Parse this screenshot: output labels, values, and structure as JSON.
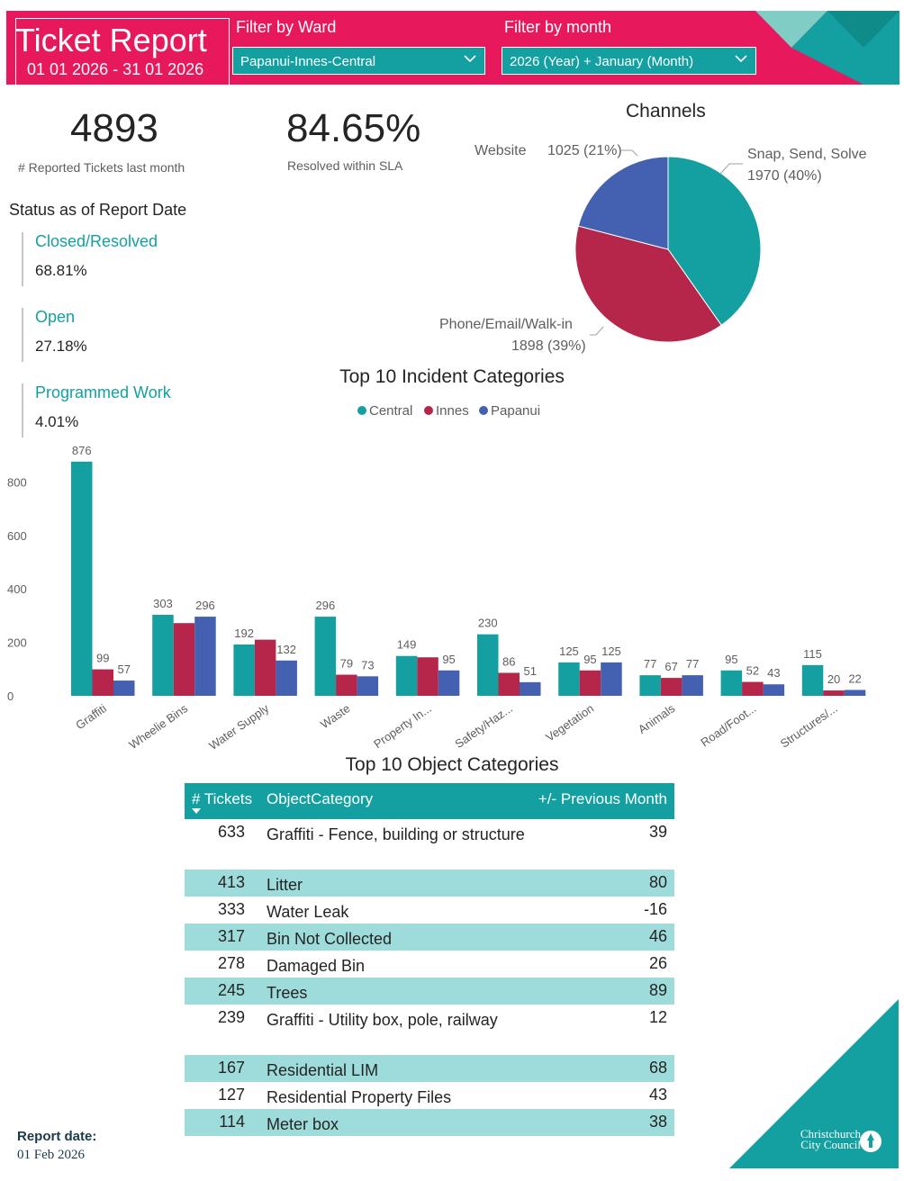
{
  "header": {
    "title": "Ticket Report",
    "date_range": "01 01 2026 - 31 01 2026",
    "ward_filter_label": "Filter by Ward",
    "ward_filter_value": "Papanui-Innes-Central",
    "month_filter_label": "Filter by month",
    "month_filter_value": "2026 (Year) + January (Month)"
  },
  "kpis": {
    "reported": {
      "value": "4893",
      "label": "# Reported Tickets last month"
    },
    "sla": {
      "value": "84.65%",
      "label": "Resolved within SLA"
    }
  },
  "status": {
    "title": "Status as of Report Date",
    "items": [
      {
        "name": "Closed/Resolved",
        "value": "68.81%"
      },
      {
        "name": "Open",
        "value": "27.18%"
      },
      {
        "name": "Programmed Work",
        "value": "4.01%"
      }
    ]
  },
  "table": {
    "title": "Top 10 Object Categories",
    "headers": [
      "# Tickets",
      "ObjectCategory",
      "+/- Previous Month"
    ],
    "rows": [
      {
        "tickets": "633",
        "category": "Graffiti - Fence, building or structure",
        "diff": "39"
      },
      {
        "tickets": "413",
        "category": "Litter",
        "diff": "80"
      },
      {
        "tickets": "333",
        "category": "Water Leak",
        "diff": "-16"
      },
      {
        "tickets": "317",
        "category": "Bin Not Collected",
        "diff": "46"
      },
      {
        "tickets": "278",
        "category": "Damaged Bin",
        "diff": "26"
      },
      {
        "tickets": "245",
        "category": "Trees",
        "diff": "89"
      },
      {
        "tickets": "239",
        "category": "Graffiti - Utility box, pole, railway",
        "diff": "12"
      },
      {
        "tickets": "167",
        "category": "Residential LIM",
        "diff": "68"
      },
      {
        "tickets": "127",
        "category": "Residential Property Files",
        "diff": "43"
      },
      {
        "tickets": "114",
        "category": "Meter box",
        "diff": "38"
      }
    ]
  },
  "footer": {
    "report_date_label": "Report date:",
    "report_date": "01 Feb 2026",
    "logo_line1": "Christchurch",
    "logo_line2": "City Council"
  },
  "colors": {
    "header": "#e8185c",
    "teal": "#14a0a0",
    "innes": "#b5264a",
    "papanui": "#4460b0",
    "row_shade": "#9edcdc"
  },
  "icons": {
    "dropdown": "chevron-down-icon",
    "sort": "sort-descending-icon",
    "logo": "cathedral-logo-icon"
  },
  "chart_data": [
    {
      "type": "pie",
      "title": "Channels",
      "slices": [
        {
          "name": "Snap, Send, Solve",
          "value": 1970,
          "label_value": "1970 (40%)",
          "color": "#14a0a0"
        },
        {
          "name": "Phone/Email/Walk-in",
          "value": 1898,
          "label_value": "1898 (39%)",
          "color": "#b5264a"
        },
        {
          "name": "Website",
          "value": 1025,
          "label_value": "1025 (21%)",
          "color": "#4460b0"
        }
      ]
    },
    {
      "type": "bar",
      "title": "Top 10 Incident Categories",
      "categories": [
        "Graffiti",
        "Wheelie Bins",
        "Water Supply",
        "Waste",
        "Property In...",
        "Safety/Haz...",
        "Vegetation",
        "Animals",
        "Road/Foot...",
        "Structures/..."
      ],
      "series": [
        {
          "name": "Central",
          "color": "#14a0a0",
          "values": [
            876,
            303,
            192,
            296,
            149,
            230,
            125,
            77,
            95,
            115
          ],
          "labels": [
            "876",
            "303",
            "192",
            "296",
            "149",
            "230",
            "125",
            "77",
            "95",
            "115"
          ]
        },
        {
          "name": "Innes",
          "color": "#b5264a",
          "values": [
            99,
            272,
            210,
            79,
            144,
            86,
            95,
            67,
            52,
            20
          ],
          "labels": [
            "99",
            "",
            "",
            "79",
            "",
            "86",
            "95",
            "67",
            "52",
            "20"
          ]
        },
        {
          "name": "Papanui",
          "color": "#4460b0",
          "values": [
            57,
            296,
            132,
            73,
            95,
            51,
            125,
            77,
            43,
            22
          ],
          "labels": [
            "57",
            "296",
            "132",
            "73",
            "95",
            "51",
            "125",
            "77",
            "43",
            "22"
          ]
        }
      ],
      "ylim": [
        0,
        900
      ],
      "yticks": [
        0,
        200,
        400,
        600,
        800
      ],
      "legend_position": "top-center",
      "grid": false
    }
  ]
}
